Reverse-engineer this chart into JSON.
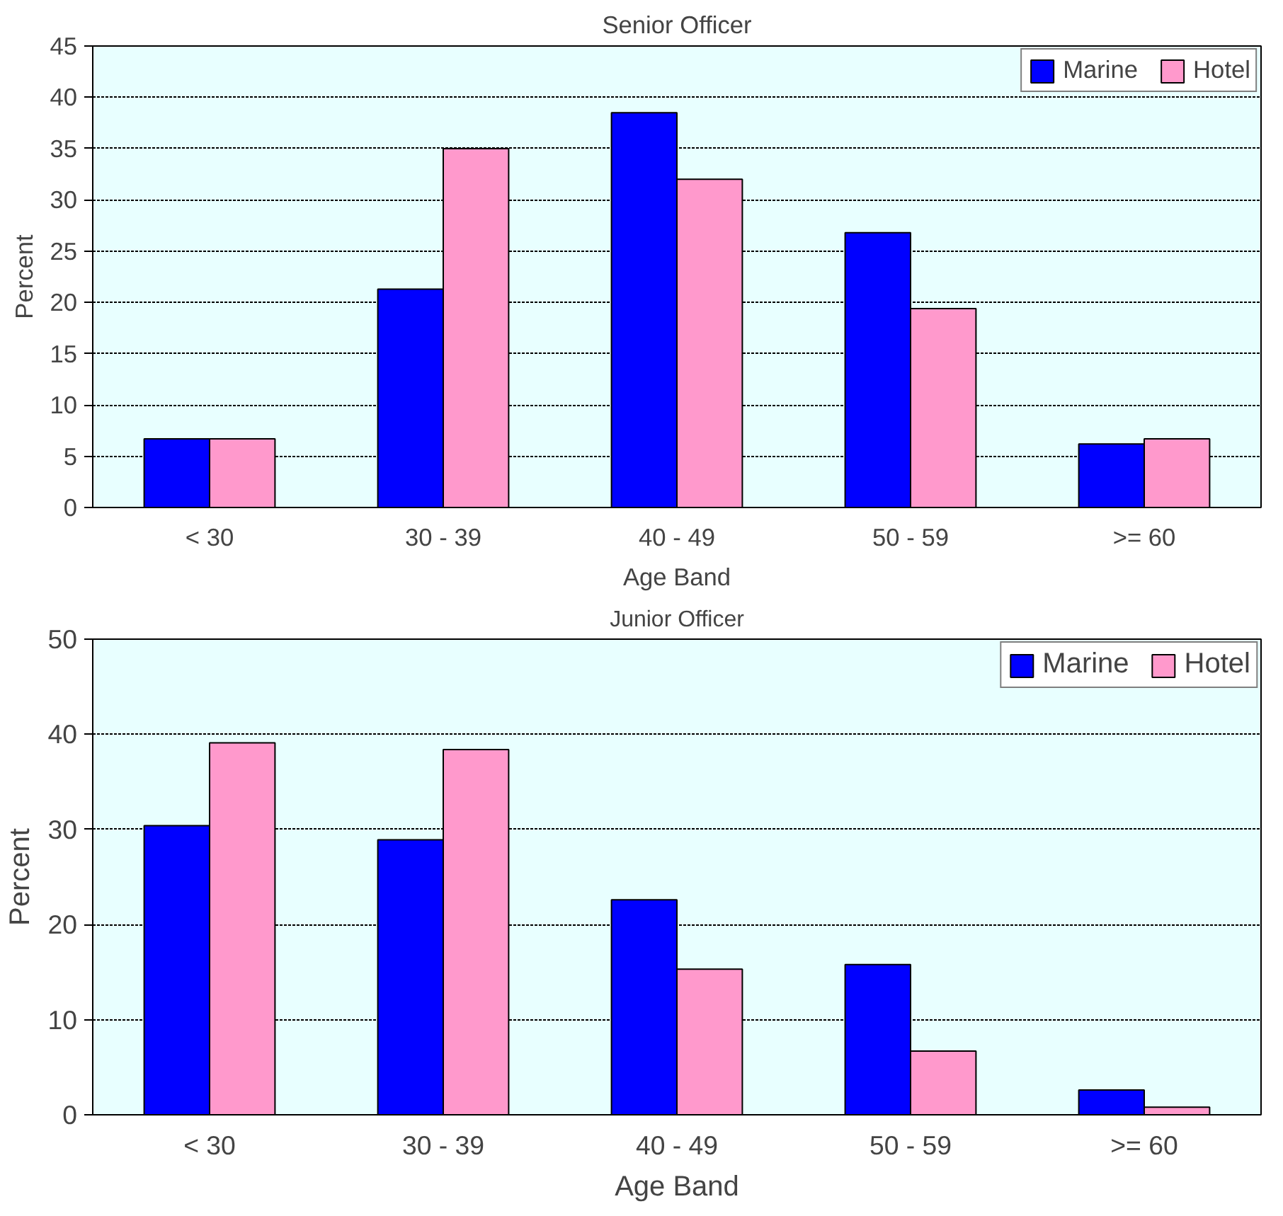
{
  "chart_data": [
    {
      "type": "bar",
      "title": "Senior Officer",
      "xlabel": "Age Band",
      "ylabel": "Percent",
      "categories": [
        "< 30",
        "30 - 39",
        "40 - 49",
        "50 - 59",
        ">= 60"
      ],
      "series": [
        {
          "name": "Marine",
          "color": "#0000ff",
          "values": [
            6.7,
            21.3,
            38.5,
            26.8,
            6.2
          ]
        },
        {
          "name": "Hotel",
          "color": "#ff99cc",
          "values": [
            6.7,
            35.0,
            32.0,
            19.4,
            6.7
          ]
        }
      ],
      "ylim": [
        0,
        45
      ],
      "yticks": [
        0,
        5,
        10,
        15,
        20,
        25,
        30,
        35,
        40,
        45
      ],
      "grid": "y",
      "legend": "top right"
    },
    {
      "type": "bar",
      "title": "Junior Officer",
      "xlabel": "Age Band",
      "ylabel": "Percent",
      "categories": [
        "< 30",
        "30 - 39",
        "40 - 49",
        "50 - 59",
        ">= 60"
      ],
      "series": [
        {
          "name": "Marine",
          "color": "#0000ff",
          "values": [
            30.4,
            28.9,
            22.6,
            15.8,
            2.6
          ]
        },
        {
          "name": "Hotel",
          "color": "#ff99cc",
          "values": [
            39.1,
            38.4,
            15.3,
            6.7,
            0.8
          ]
        }
      ],
      "ylim": [
        0,
        50
      ],
      "yticks": [
        0,
        10,
        20,
        30,
        40,
        50
      ],
      "grid": "y",
      "legend": "top right"
    }
  ]
}
